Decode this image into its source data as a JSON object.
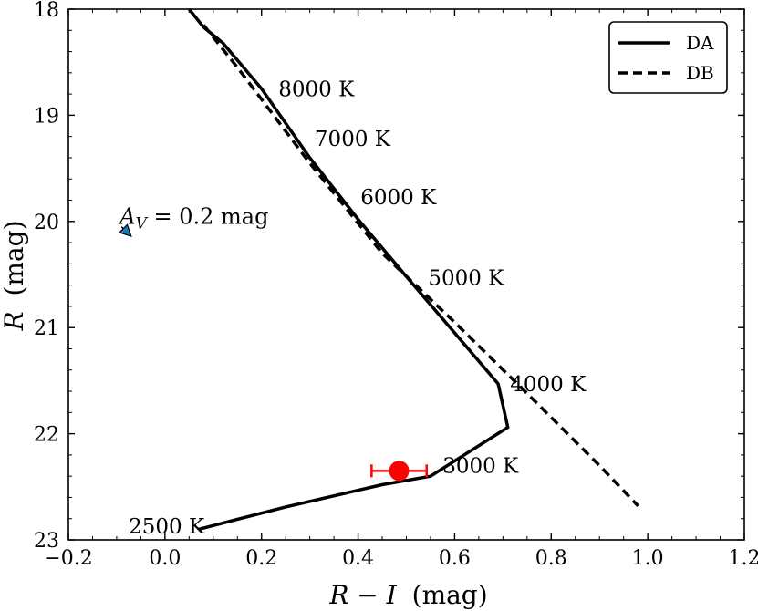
{
  "chart_data": {
    "type": "line",
    "xlabel_var": "R − I",
    "xlabel_unit": "(mag)",
    "ylabel_var": "R",
    "ylabel_unit": "(mag)",
    "xlim": [
      -0.2,
      1.2
    ],
    "ylim": [
      23,
      18
    ],
    "y_inverted": true,
    "x_ticks": [
      -0.2,
      0.0,
      0.2,
      0.4,
      0.6,
      0.8,
      1.0,
      1.2
    ],
    "x_tick_labels": [
      "−0.2",
      "0.0",
      "0.2",
      "0.4",
      "0.6",
      "0.8",
      "1.0",
      "1.2"
    ],
    "y_ticks": [
      18,
      19,
      20,
      21,
      22,
      23
    ],
    "y_tick_labels": [
      "18",
      "19",
      "20",
      "21",
      "22",
      "23"
    ],
    "legend_position": "top-right",
    "series": [
      {
        "name": "DA",
        "style": "solid",
        "color": "#000000",
        "x": [
          0.05,
          0.08,
          0.12,
          0.2,
          0.3,
          0.4,
          0.5,
          0.6,
          0.69,
          0.71,
          0.55,
          0.45,
          0.25,
          0.07
        ],
        "y": [
          18.0,
          18.17,
          18.32,
          18.75,
          19.4,
          19.98,
          20.52,
          21.05,
          21.53,
          21.94,
          22.4,
          22.48,
          22.69,
          22.9
        ]
      },
      {
        "name": "DB",
        "style": "dashed",
        "color": "#000000",
        "x": [
          0.08,
          0.15,
          0.3,
          0.45,
          0.6,
          0.75,
          0.9,
          0.98
        ],
        "y": [
          18.15,
          18.55,
          19.45,
          20.3,
          20.95,
          21.62,
          22.3,
          22.68
        ]
      }
    ],
    "temperature_labels": [
      {
        "text": "8000 K",
        "x": 0.235,
        "y": 18.75
      },
      {
        "text": "7000 K",
        "x": 0.31,
        "y": 19.22
      },
      {
        "text": "6000 K",
        "x": 0.405,
        "y": 19.77
      },
      {
        "text": "5000 K",
        "x": 0.545,
        "y": 20.53
      },
      {
        "text": "4000 K",
        "x": 0.715,
        "y": 21.53
      },
      {
        "text": "3000 K",
        "x": 0.575,
        "y": 22.3
      },
      {
        "text": "2500 K",
        "x": -0.075,
        "y": 22.87
      }
    ],
    "data_point": {
      "x": 0.485,
      "y": 22.35,
      "xerr": 0.057,
      "color": "#ff0000"
    },
    "extinction_vector": {
      "label_var": "A",
      "label_sub": "V",
      "label_rest": " = 0.2 mag",
      "label_x": -0.09,
      "label_y": 19.92,
      "x0": -0.09,
      "y0": 20.05,
      "x1": -0.07,
      "y1": 20.14,
      "color": "#1f77b4"
    }
  }
}
